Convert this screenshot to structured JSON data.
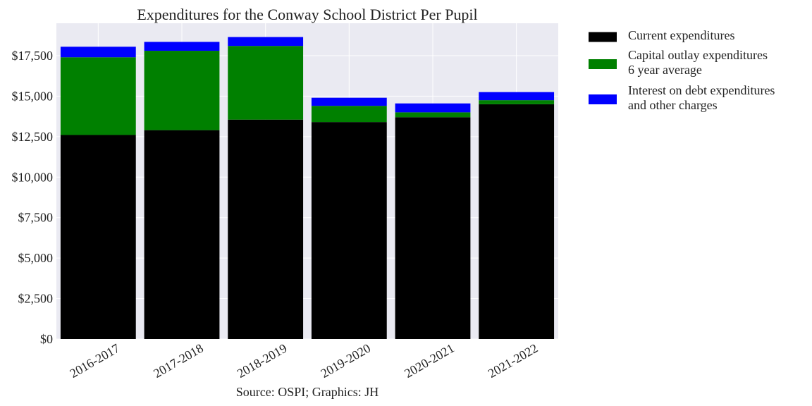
{
  "chart_data": {
    "type": "bar",
    "stacked": true,
    "title": "Expenditures for the Conway School District Per Pupil",
    "source_note": "Source: OSPI; Graphics: JH",
    "xlabel": "",
    "ylabel": "",
    "categories": [
      "2016-2017",
      "2017-2018",
      "2018-2019",
      "2019-2020",
      "2020-2021",
      "2021-2022"
    ],
    "ylim": [
      0,
      19500
    ],
    "yticks": [
      0,
      2500,
      5000,
      7500,
      10000,
      12500,
      15000,
      17500
    ],
    "ytick_labels": [
      "$0",
      "$2,500",
      "$5,000",
      "$7,500",
      "$10,000",
      "$12,500",
      "$15,000",
      "$17,500"
    ],
    "grid": true,
    "legend_position": "outside right, top",
    "series": [
      {
        "name": "Current expenditures",
        "color": "#000000",
        "values": [
          12600,
          12900,
          13550,
          13400,
          13700,
          14500
        ]
      },
      {
        "name": "Capital outlay expenditures\n6 year average",
        "color": "#008000",
        "values": [
          4800,
          4900,
          4550,
          1000,
          300,
          250
        ]
      },
      {
        "name": "Interest on debt expenditures\nand other charges",
        "color": "#0000ff",
        "values": [
          650,
          550,
          550,
          500,
          550,
          500
        ]
      }
    ]
  }
}
